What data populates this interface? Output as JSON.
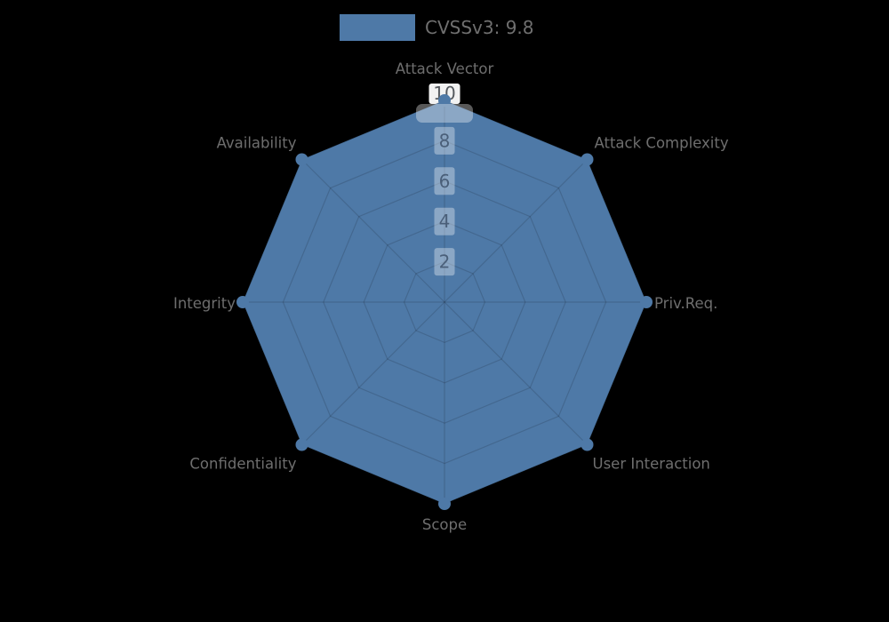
{
  "background": "#000000",
  "legend": {
    "label": "CVSSv3: 9.8",
    "swatch_color": "#4e79a7",
    "position": "top"
  },
  "chart_data": {
    "type": "radar",
    "title": "",
    "categories": [
      "Attack Vector",
      "Attack Complexity",
      "Priv.Req.",
      "User Interaction",
      "Scope",
      "Confidentiality",
      "Integrity",
      "Availability"
    ],
    "series": [
      {
        "name": "CVSSv3: 9.8",
        "values": [
          10,
          10,
          10,
          10,
          10,
          10,
          10,
          10
        ]
      }
    ],
    "max": 10,
    "min": 0,
    "ticks": [
      2,
      4,
      6,
      8,
      10
    ],
    "rings": 5,
    "start_axis": "top",
    "direction": "clockwise",
    "grid": "on",
    "legend_position": "top-center",
    "colors": {
      "series_fill": "#4e79a7",
      "marker": "#4e79a7",
      "grid_line": "rgba(0,0,0,0.14)",
      "axis_label": "#6e6e6e",
      "tick_label": "#4a5f79",
      "tick_label_top": "#55595e",
      "tick_box": "rgba(255,255,255,0.35)",
      "tick_box_top": "rgba(255,255,255,0.95)"
    }
  }
}
